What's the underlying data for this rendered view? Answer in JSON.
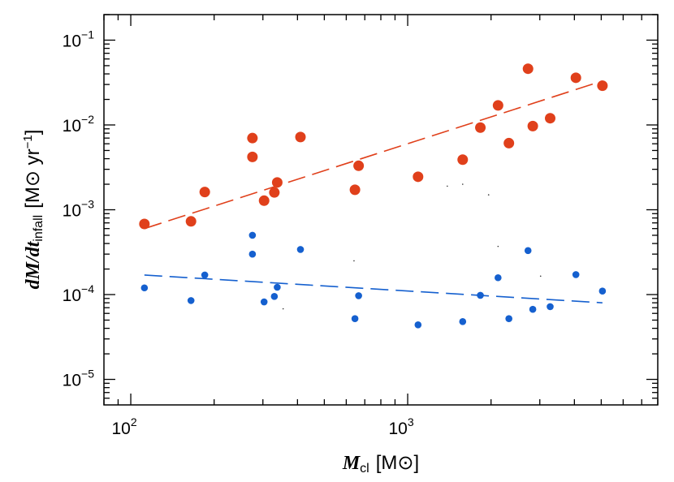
{
  "chart_data": {
    "type": "scatter",
    "x_scale": "log",
    "y_scale": "log",
    "xlim": [
      80,
      8000
    ],
    "ylim": [
      5e-06,
      0.2
    ],
    "x_ticks": [
      {
        "value": 100,
        "base": "10",
        "exp": "2"
      },
      {
        "value": 1000,
        "base": "10",
        "exp": "3"
      }
    ],
    "y_ticks": [
      {
        "value": 1e-05,
        "base": "10",
        "exp": "−5"
      },
      {
        "value": 0.0001,
        "base": "10",
        "exp": "−4"
      },
      {
        "value": 0.001,
        "base": "10",
        "exp": "−3"
      },
      {
        "value": 0.01,
        "base": "10",
        "exp": "−2"
      },
      {
        "value": 0.1,
        "base": "10",
        "exp": "−1"
      }
    ],
    "xlabel": {
      "math": "M",
      "sub": "cl",
      "unit": "[M⊙]"
    },
    "ylabel": {
      "math": "dM/dt",
      "sub": "infall",
      "unit_pre": "[M⊙ yr",
      "unit_sup": "−1",
      "unit_post": "]"
    },
    "grid": false,
    "series": [
      {
        "color": "#e0401b",
        "marker_size": "large",
        "points": [
          [
            112,
            0.00068
          ],
          [
            165,
            0.00073
          ],
          [
            185,
            0.00162
          ],
          [
            275,
            0.007
          ],
          [
            275,
            0.0042
          ],
          [
            303,
            0.00128
          ],
          [
            330,
            0.0016
          ],
          [
            338,
            0.0021
          ],
          [
            410,
            0.0072
          ],
          [
            645,
            0.00172
          ],
          [
            665,
            0.0033
          ],
          [
            1090,
            0.00245
          ],
          [
            1580,
            0.0039
          ],
          [
            1830,
            0.0093
          ],
          [
            2120,
            0.017
          ],
          [
            2320,
            0.0061
          ],
          [
            2720,
            0.046
          ],
          [
            2830,
            0.0097
          ],
          [
            3270,
            0.012
          ],
          [
            4050,
            0.036
          ],
          [
            5050,
            0.029
          ]
        ],
        "fit": {
          "x": [
            112,
            5050
          ],
          "y": [
            0.0006,
            0.033
          ]
        }
      },
      {
        "color": "#1560cf",
        "marker_size": "small",
        "points": [
          [
            112,
            0.00012
          ],
          [
            165,
            8.5e-05
          ],
          [
            185,
            0.00017
          ],
          [
            275,
            0.0005
          ],
          [
            275,
            0.0003
          ],
          [
            303,
            8.2e-05
          ],
          [
            330,
            9.5e-05
          ],
          [
            338,
            0.000122
          ],
          [
            410,
            0.00034
          ],
          [
            645,
            5.2e-05
          ],
          [
            665,
            9.7e-05
          ],
          [
            1090,
            4.4e-05
          ],
          [
            1580,
            4.8e-05
          ],
          [
            1830,
            9.8e-05
          ],
          [
            2120,
            0.000158
          ],
          [
            2320,
            5.2e-05
          ],
          [
            2720,
            0.00033
          ],
          [
            2830,
            6.7e-05
          ],
          [
            3270,
            7.2e-05
          ],
          [
            4050,
            0.000172
          ],
          [
            5050,
            0.00011
          ]
        ],
        "fit": {
          "x": [
            112,
            5050
          ],
          "y": [
            0.00017,
            8e-05
          ]
        }
      }
    ],
    "stray_points": [
      [
        355,
        6.8e-05
      ],
      [
        640,
        0.00025
      ],
      [
        1390,
        0.0019
      ],
      [
        1580,
        0.002
      ],
      [
        1960,
        0.0015
      ],
      [
        2120,
        0.00037
      ],
      [
        3020,
        0.000165
      ]
    ]
  }
}
